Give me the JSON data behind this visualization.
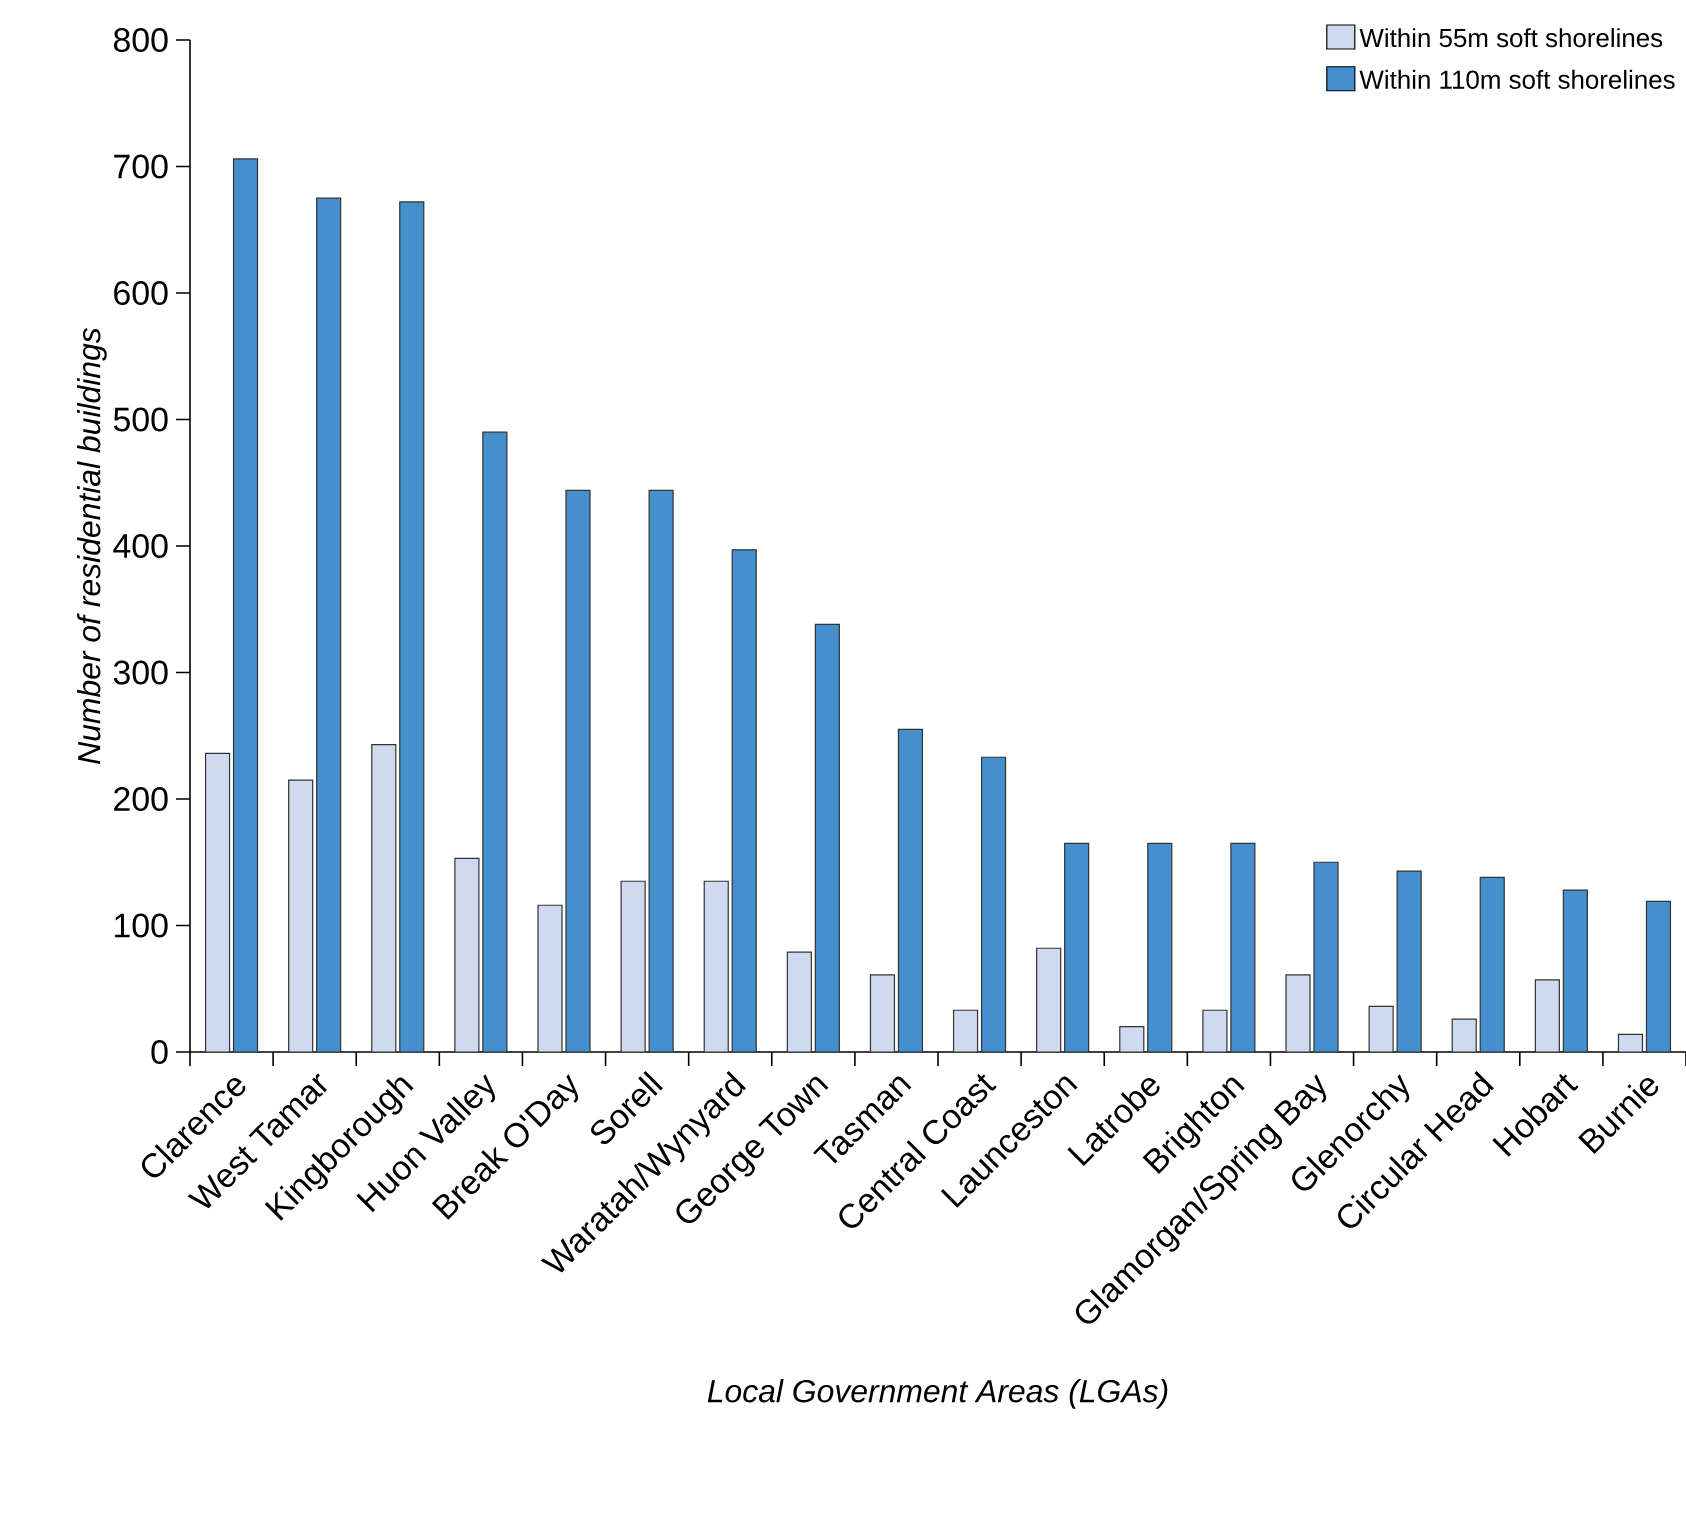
{
  "chart_data": {
    "type": "bar",
    "xlabel": "Local Government Areas (LGAs)",
    "ylabel": "Number of residential buildings",
    "categories": [
      "Clarence",
      "West Tamar",
      "Kingborough",
      "Huon Valley",
      "Break O'Day",
      "Sorell",
      "Waratah/Wynyard",
      "George Town",
      "Tasman",
      "Central Coast",
      "Launceston",
      "Latrobe",
      "Brighton",
      "Glamorgan/Spring Bay",
      "Glenorchy",
      "Circular Head",
      "Hobart",
      "Burnie"
    ],
    "series": [
      {
        "name": "Within 55m soft shorelines",
        "color": "#cfdaf0",
        "values": [
          236,
          215,
          243,
          153,
          116,
          135,
          135,
          79,
          61,
          33,
          82,
          20,
          33,
          61,
          36,
          26,
          57,
          14
        ]
      },
      {
        "name": "Within 110m soft shorelines",
        "color": "#448fcc",
        "values": [
          706,
          675,
          672,
          490,
          444,
          444,
          397,
          338,
          255,
          233,
          165,
          165,
          165,
          150,
          143,
          138,
          128,
          119
        ]
      }
    ],
    "ylim": [
      0,
      800
    ],
    "yticks": [
      0,
      100,
      200,
      300,
      400,
      500,
      600,
      700,
      800
    ],
    "grid": false,
    "legend": "top right"
  }
}
